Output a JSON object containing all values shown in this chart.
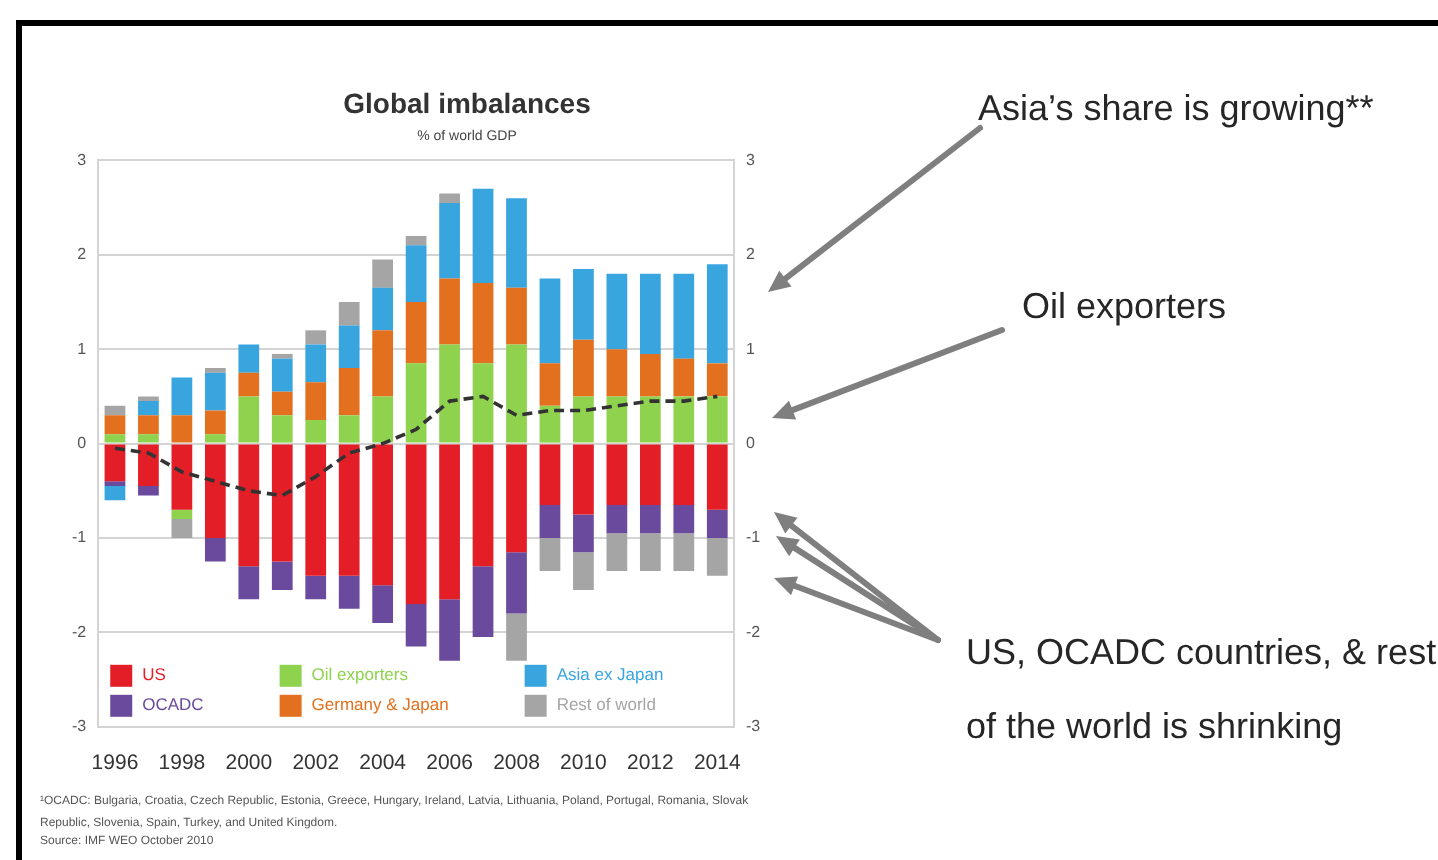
{
  "chart_data": {
    "type": "bar",
    "title": "Global imbalances",
    "subtitle": "% of world GDP",
    "categories": [
      "1996",
      null,
      "1998",
      null,
      "2000",
      null,
      "2002",
      null,
      "2004",
      null,
      "2006",
      null,
      "2008",
      null,
      "2010",
      null,
      "2012",
      null,
      "2014"
    ],
    "stacked": true,
    "series": [
      {
        "name": "US",
        "color": "#e41e26",
        "values": [
          -0.4,
          -0.45,
          -0.7,
          -1.0,
          -1.3,
          -1.25,
          -1.4,
          -1.4,
          -1.5,
          -1.7,
          -1.65,
          -1.3,
          -1.15,
          -0.65,
          -0.75,
          -0.65,
          -0.65,
          -0.65,
          -0.7
        ]
      },
      {
        "name": "OCADC",
        "color": "#6a4a9c",
        "values": [
          -0.05,
          -0.1,
          null,
          -0.25,
          -0.35,
          -0.3,
          -0.25,
          -0.35,
          -0.4,
          -0.45,
          -0.65,
          -0.75,
          -0.65,
          -0.35,
          -0.4,
          -0.3,
          -0.3,
          -0.3,
          -0.3
        ]
      },
      {
        "name": "Oil exporters",
        "color": "#8ed24e",
        "values": [
          0.1,
          0.1,
          -0.1,
          0.1,
          0.5,
          0.3,
          0.25,
          0.3,
          0.5,
          0.85,
          1.05,
          0.85,
          1.05,
          0.4,
          0.5,
          0.5,
          0.5,
          0.5,
          0.5
        ]
      },
      {
        "name": "Germany & Japan",
        "color": "#e2701e",
        "values": [
          0.2,
          0.2,
          0.3,
          0.25,
          0.25,
          0.25,
          0.4,
          0.5,
          0.7,
          0.65,
          0.7,
          0.85,
          0.6,
          0.45,
          0.6,
          0.5,
          0.45,
          0.4,
          0.35
        ]
      },
      {
        "name": "Asia ex Japan",
        "color": "#39a5df",
        "values": [
          -0.15,
          0.15,
          0.4,
          0.4,
          0.3,
          0.35,
          0.4,
          0.45,
          0.45,
          0.6,
          0.8,
          1.0,
          0.95,
          0.9,
          0.75,
          0.8,
          0.85,
          0.9,
          1.05
        ]
      },
      {
        "name": "Rest of world",
        "color": "#a5a5a5",
        "values": [
          0.1,
          0.05,
          -0.2,
          0.05,
          null,
          0.05,
          0.15,
          0.25,
          0.3,
          0.1,
          0.1,
          null,
          -0.5,
          -0.35,
          -0.4,
          -0.4,
          -0.4,
          -0.4,
          -0.4
        ]
      },
      {
        "type": "line",
        "color": "#333333",
        "line_style": "dashed",
        "marker": "none",
        "values": [
          -0.05,
          -0.1,
          -0.3,
          -0.4,
          -0.5,
          -0.55,
          -0.35,
          -0.1,
          0,
          0.15,
          0.45,
          0.5,
          0.3,
          0.35,
          0.35,
          0.4,
          0.45,
          0.45,
          0.5
        ]
      }
    ],
    "ylim": [
      -3,
      3
    ],
    "yticks": [
      -3,
      -2,
      -1,
      0,
      1,
      2,
      3
    ],
    "y2lim": [
      -3,
      3
    ],
    "y2ticks": [
      -3,
      -2,
      -1,
      0,
      1,
      2,
      3
    ],
    "grid": "y",
    "legend": "bottom left",
    "annotations": [
      "Asia’s share is growing**",
      "Oil exporters",
      "US, OCADC countries, & rest of the world is shrinking",
      "¹OCADC: Bulgaria, Croatia, Czech Republic, Estonia, Greece, Hungary, Ireland, Latvia, Lithuania, Poland, Portugal, Romania, Slovak Republic, Slovenia, Spain, Turkey, and United Kingdom.",
      "Source: IMF WEO October 2010"
    ]
  }
}
